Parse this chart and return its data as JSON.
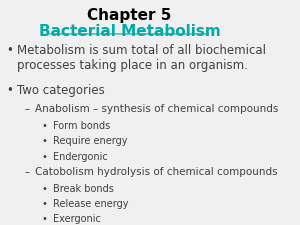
{
  "title_line1": "Chapter 5",
  "title_line2": "Bacterial Metabolism",
  "title_color": "#000000",
  "title_link_color": "#00AAAA",
  "background_color": "#F0F0F0",
  "text_color": "#404040",
  "title_fontsize": 11,
  "body_fontsize": 8.5,
  "sub_fontsize": 7.5,
  "subsub_fontsize": 7.0,
  "lines": [
    {
      "level": 0,
      "text": "Metabolism is sum total of all biochemical\nprocesses taking place in an organism.",
      "bullet": "•"
    },
    {
      "level": 0,
      "text": "Two categories",
      "bullet": "•"
    },
    {
      "level": 1,
      "text": "Anabolism – synthesis of chemical compounds",
      "bullet": "–"
    },
    {
      "level": 2,
      "text": "Form bonds",
      "bullet": "•"
    },
    {
      "level": 2,
      "text": "Require energy",
      "bullet": "•"
    },
    {
      "level": 2,
      "text": "Endergonic",
      "bullet": "•"
    },
    {
      "level": 1,
      "text": "Catobolism hydrolysis of chemical compounds",
      "bullet": "–"
    },
    {
      "level": 2,
      "text": "Break bonds",
      "bullet": "•"
    },
    {
      "level": 2,
      "text": "Release energy",
      "bullet": "•"
    },
    {
      "level": 2,
      "text": "Exergonic",
      "bullet": "•"
    }
  ]
}
